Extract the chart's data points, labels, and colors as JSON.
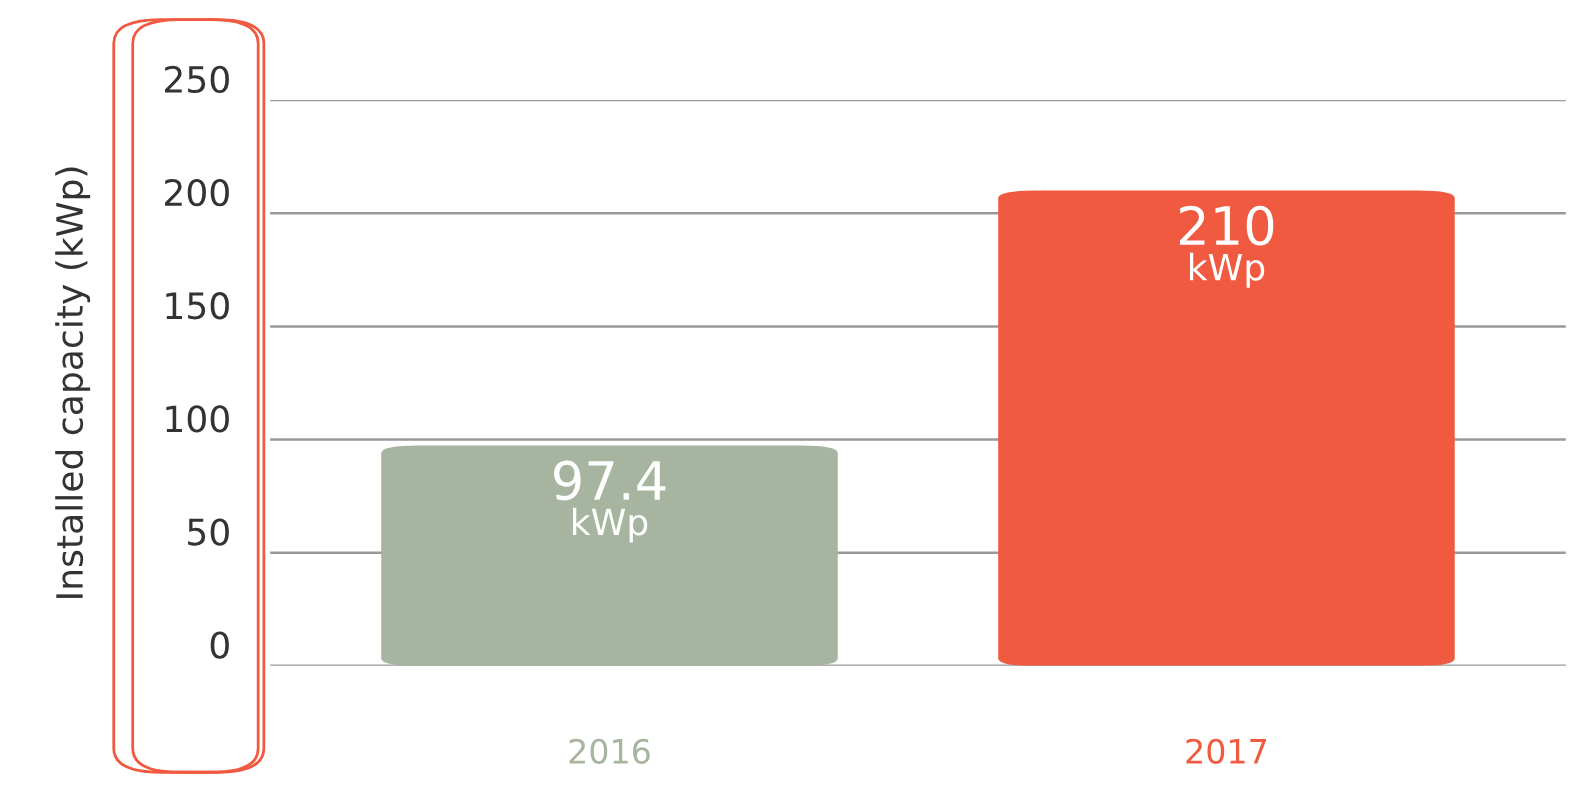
{
  "chart_data": {
    "type": "bar",
    "ylabel": "Installed capacity (kWp)",
    "categories": [
      "2016",
      "2017"
    ],
    "series": [
      {
        "colors": [
          "#a7b5a0",
          "#f05a40"
        ],
        "values": [
          97.4,
          210
        ],
        "value_labels": [
          "97.4\nkWp",
          "210\nkWp"
        ]
      }
    ],
    "ylim": [
      0,
      250
    ],
    "yticks": [
      0,
      50,
      100,
      150,
      200,
      250
    ],
    "grid": "y"
  }
}
